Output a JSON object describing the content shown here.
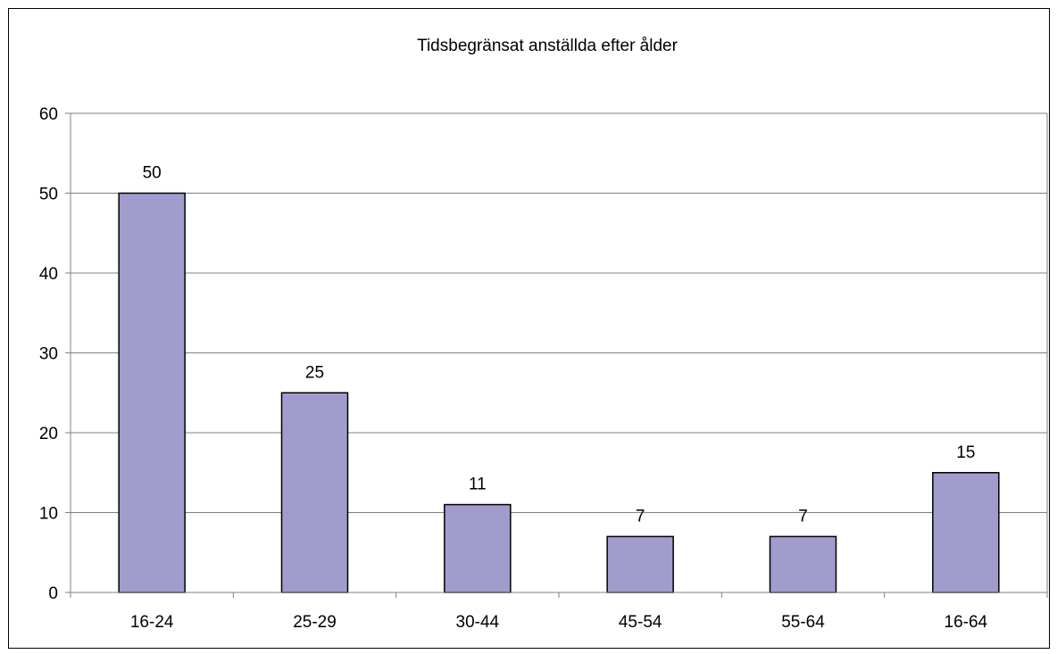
{
  "chart_data": {
    "type": "bar",
    "title": "Tidsbegränsat anställda efter ålder",
    "categories": [
      "16-24",
      "25-29",
      "30-44",
      "45-54",
      "55-64",
      "16-64"
    ],
    "values": [
      50,
      25,
      11,
      7,
      7,
      15
    ],
    "ylim": [
      0,
      60
    ],
    "yticks": [
      0,
      10,
      20,
      30,
      40,
      50,
      60
    ],
    "xlabel": "",
    "ylabel": "",
    "grid": true,
    "legend": "none",
    "colors": {
      "bar_fill": "#a09dcc",
      "bar_stroke": "#000000",
      "gridline": "#808080",
      "axis": "#808080"
    }
  }
}
